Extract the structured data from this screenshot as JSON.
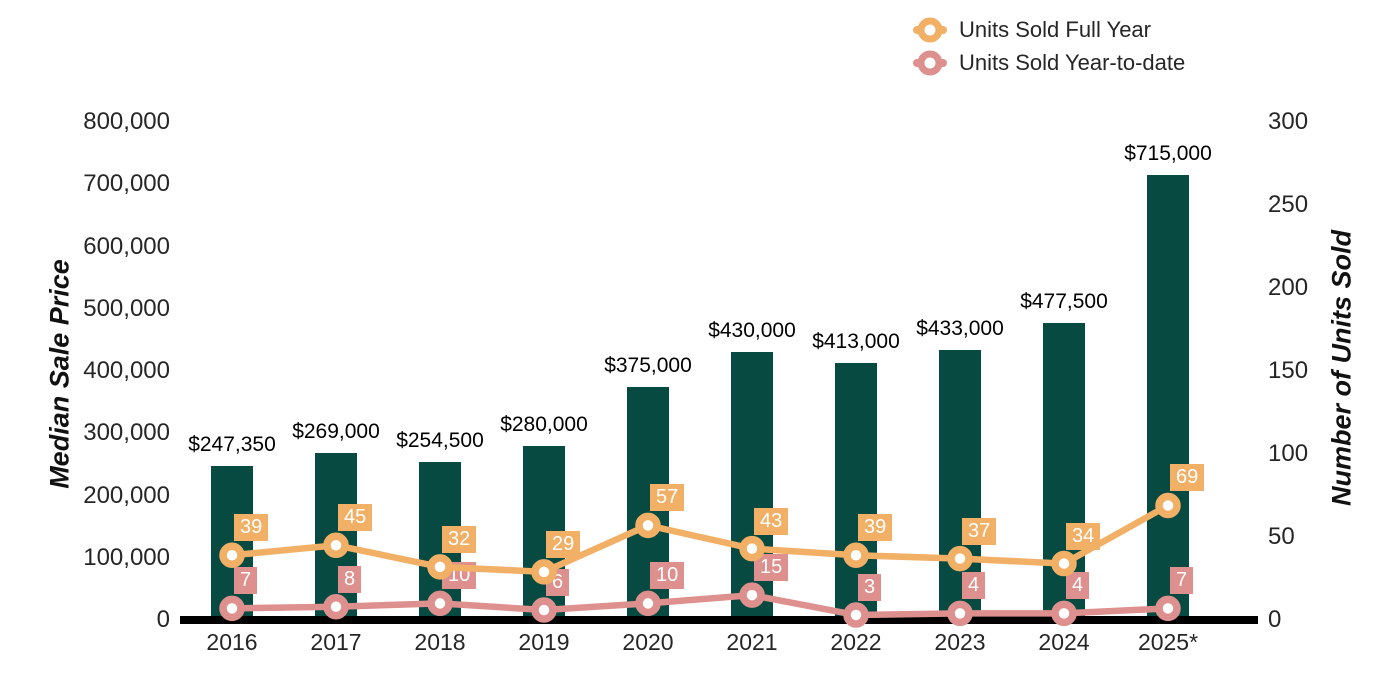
{
  "chart_data": {
    "type": "combo-bar-line",
    "background": "#ffffff",
    "grid": false,
    "legend_position": "top-right",
    "categories": [
      "2016",
      "2017",
      "2018",
      "2019",
      "2020",
      "2021",
      "2022",
      "2023",
      "2024",
      "2025*"
    ],
    "bar_series": {
      "name": "Median Sale Price",
      "color": "#074a42",
      "axis": "left",
      "values": [
        247350,
        269000,
        254500,
        280000,
        375000,
        430000,
        413000,
        433000,
        477500,
        715000
      ],
      "labels": [
        "$247,350",
        "$269,000",
        "$254,500",
        "$280,000",
        "$375,000",
        "$430,000",
        "$413,000",
        "$433,000",
        "$477,500",
        "$715,000"
      ]
    },
    "line_series": [
      {
        "name": "Units Sold Full Year",
        "color": "#f2b066",
        "axis": "right",
        "values": [
          39,
          45,
          32,
          29,
          57,
          43,
          39,
          37,
          34,
          69
        ]
      },
      {
        "name": "Units Sold Year-to-date",
        "color": "#dd908d",
        "axis": "right",
        "values": [
          7,
          8,
          10,
          6,
          10,
          15,
          3,
          4,
          4,
          7
        ]
      }
    ],
    "left_axis": {
      "title": "Median Sale Price",
      "range": [
        0,
        800000
      ],
      "tick_step": 100000,
      "tick_labels": [
        "0",
        "100,000",
        "200,000",
        "300,000",
        "400,000",
        "500,000",
        "600,000",
        "700,000",
        "800,000"
      ]
    },
    "right_axis": {
      "title": "Number of Units Sold",
      "range": [
        0,
        300
      ],
      "tick_step": 50,
      "tick_labels": [
        "0",
        "50",
        "100",
        "150",
        "200",
        "250",
        "300"
      ]
    },
    "colors": {
      "bar": "#074a42",
      "line_full_year": "#f2b066",
      "line_ytd": "#dd908d",
      "badge_text": "#ffffff",
      "axis_line": "#000000",
      "text": "#262626"
    }
  }
}
